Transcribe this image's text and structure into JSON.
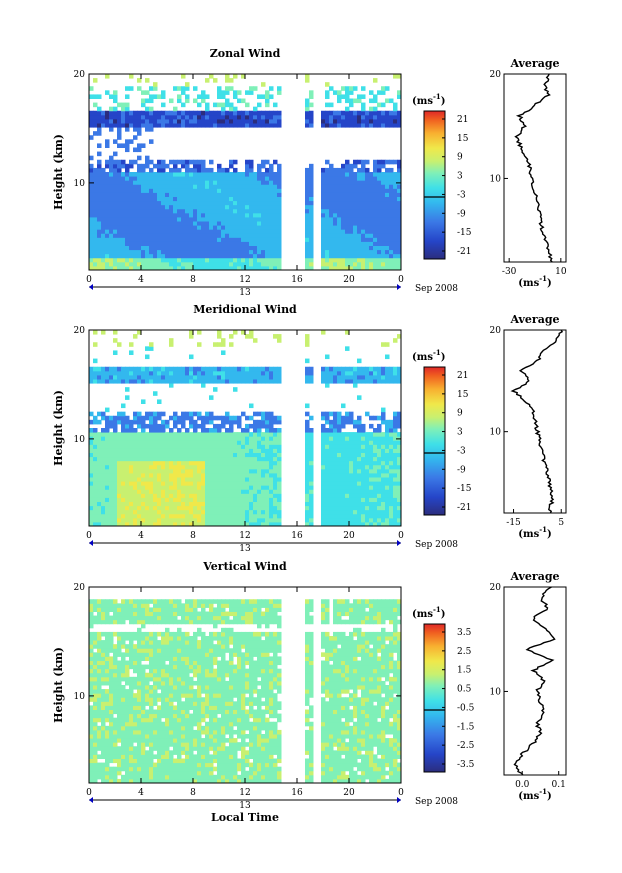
{
  "chart_data": [
    {
      "type": "heatmap",
      "title": "Zonal Wind",
      "ylabel": "Height (km)",
      "y_ticks": [
        "20",
        "10"
      ],
      "ylim": [
        2,
        20
      ],
      "x_ticks": [
        "0",
        "4",
        "8",
        "12",
        "16",
        "20",
        "0"
      ],
      "xlim": [
        0,
        24
      ],
      "date_day": "13",
      "date_month": "Sep 2008",
      "colorbar": {
        "unit": "(ms",
        "unit_sup": "-1",
        "unit_close": ")",
        "ticks": [
          "21",
          "15",
          "9",
          "3",
          "-3",
          "-9",
          "-15",
          "-21"
        ],
        "range": [
          -24,
          24
        ]
      },
      "data_gaps_hours": [
        [
          14.8,
          15.8
        ],
        [
          15.8,
          16.7
        ],
        [
          17.3,
          17.8
        ]
      ],
      "profile": {
        "title": "Average",
        "y_ticks": [
          "20",
          "10"
        ],
        "x_ticks": [
          "-30",
          "10"
        ],
        "xlim": [
          -34,
          14
        ],
        "xlabel": "(ms",
        "xlabel_sup": "-1",
        "xlabel_close": ")",
        "heights": [
          2,
          3,
          4,
          5,
          6,
          7,
          8,
          9,
          10,
          11,
          12,
          13,
          14,
          15,
          16,
          17,
          18,
          19,
          20
        ],
        "values": [
          3,
          1,
          -2,
          -4,
          -6,
          -7,
          -9,
          -11,
          -12,
          -14,
          -17,
          -21,
          -24,
          -18,
          -22,
          -10,
          0,
          -2,
          1
        ]
      }
    },
    {
      "type": "heatmap",
      "title": "Meridional Wind",
      "ylabel": "Height (km)",
      "y_ticks": [
        "20",
        "10"
      ],
      "ylim": [
        2,
        20
      ],
      "x_ticks": [
        "0",
        "4",
        "8",
        "12",
        "16",
        "20",
        "0"
      ],
      "xlim": [
        0,
        24
      ],
      "date_day": "13",
      "date_month": "Sep 2008",
      "colorbar": {
        "unit": "(ms",
        "unit_sup": "-1",
        "unit_close": ")",
        "ticks": [
          "21",
          "15",
          "9",
          "3",
          "-3",
          "-9",
          "-15",
          "-21"
        ],
        "range": [
          -24,
          24
        ]
      },
      "data_gaps_hours": [
        [
          14.8,
          16.7
        ],
        [
          17.3,
          17.8
        ]
      ],
      "profile": {
        "title": "Average",
        "y_ticks": [
          "20",
          "10"
        ],
        "x_ticks": [
          "-15",
          "5"
        ],
        "xlim": [
          -19,
          7
        ],
        "xlabel": "(ms",
        "xlabel_sup": "-1",
        "xlabel_close": ")",
        "heights": [
          2,
          3,
          4,
          5,
          6,
          7,
          8,
          9,
          10,
          11,
          12,
          13,
          14,
          15,
          16,
          17,
          18,
          19,
          20
        ],
        "values": [
          0,
          1,
          1,
          0,
          -1,
          -2,
          -3,
          -4,
          -5,
          -6,
          -7,
          -10,
          -15,
          -8,
          -12,
          -5,
          -2,
          3,
          5
        ]
      }
    },
    {
      "type": "heatmap",
      "title": "Vertical Wind",
      "ylabel": "Height (km)",
      "xlabel": "Local Time",
      "y_ticks": [
        "20",
        "10"
      ],
      "ylim": [
        2,
        20
      ],
      "x_ticks": [
        "0",
        "4",
        "8",
        "12",
        "16",
        "20",
        "0"
      ],
      "xlim": [
        0,
        24
      ],
      "date_day": "13",
      "date_month": "Sep 2008",
      "colorbar": {
        "unit": "(ms",
        "unit_sup": "-1",
        "unit_close": ")",
        "ticks": [
          "3.5",
          "2.5",
          "1.5",
          "0.5",
          "-0.5",
          "-1.5",
          "-2.5",
          "-3.5"
        ],
        "range": [
          -4,
          4
        ]
      },
      "data_gaps_hours": [
        [
          14.8,
          16.7
        ],
        [
          17.3,
          17.8
        ]
      ],
      "profile": {
        "title": "Average",
        "y_ticks": [
          "20",
          "10"
        ],
        "x_ticks": [
          "0.0",
          "0.1"
        ],
        "xlim": [
          -0.05,
          0.12
        ],
        "xlabel": "(ms",
        "xlabel_sup": "-1",
        "xlabel_close": ")",
        "heights": [
          2,
          3,
          4,
          5,
          6,
          7,
          8,
          9,
          10,
          11,
          12,
          13,
          14,
          15,
          16,
          17,
          18,
          19,
          20
        ],
        "values": [
          0.0,
          -0.02,
          0.0,
          0.03,
          0.05,
          0.04,
          0.06,
          0.05,
          0.04,
          0.06,
          0.03,
          0.08,
          0.01,
          0.09,
          0.06,
          0.03,
          0.07,
          0.05,
          0.08
        ]
      }
    }
  ],
  "colors": {
    "scale": [
      "#2b2d7e",
      "#2545c8",
      "#3b78e6",
      "#33b8ee",
      "#3fe0e8",
      "#7ff0b8",
      "#c8f070",
      "#f0e84a",
      "#f8b030",
      "#f06020",
      "#e02828"
    ]
  }
}
